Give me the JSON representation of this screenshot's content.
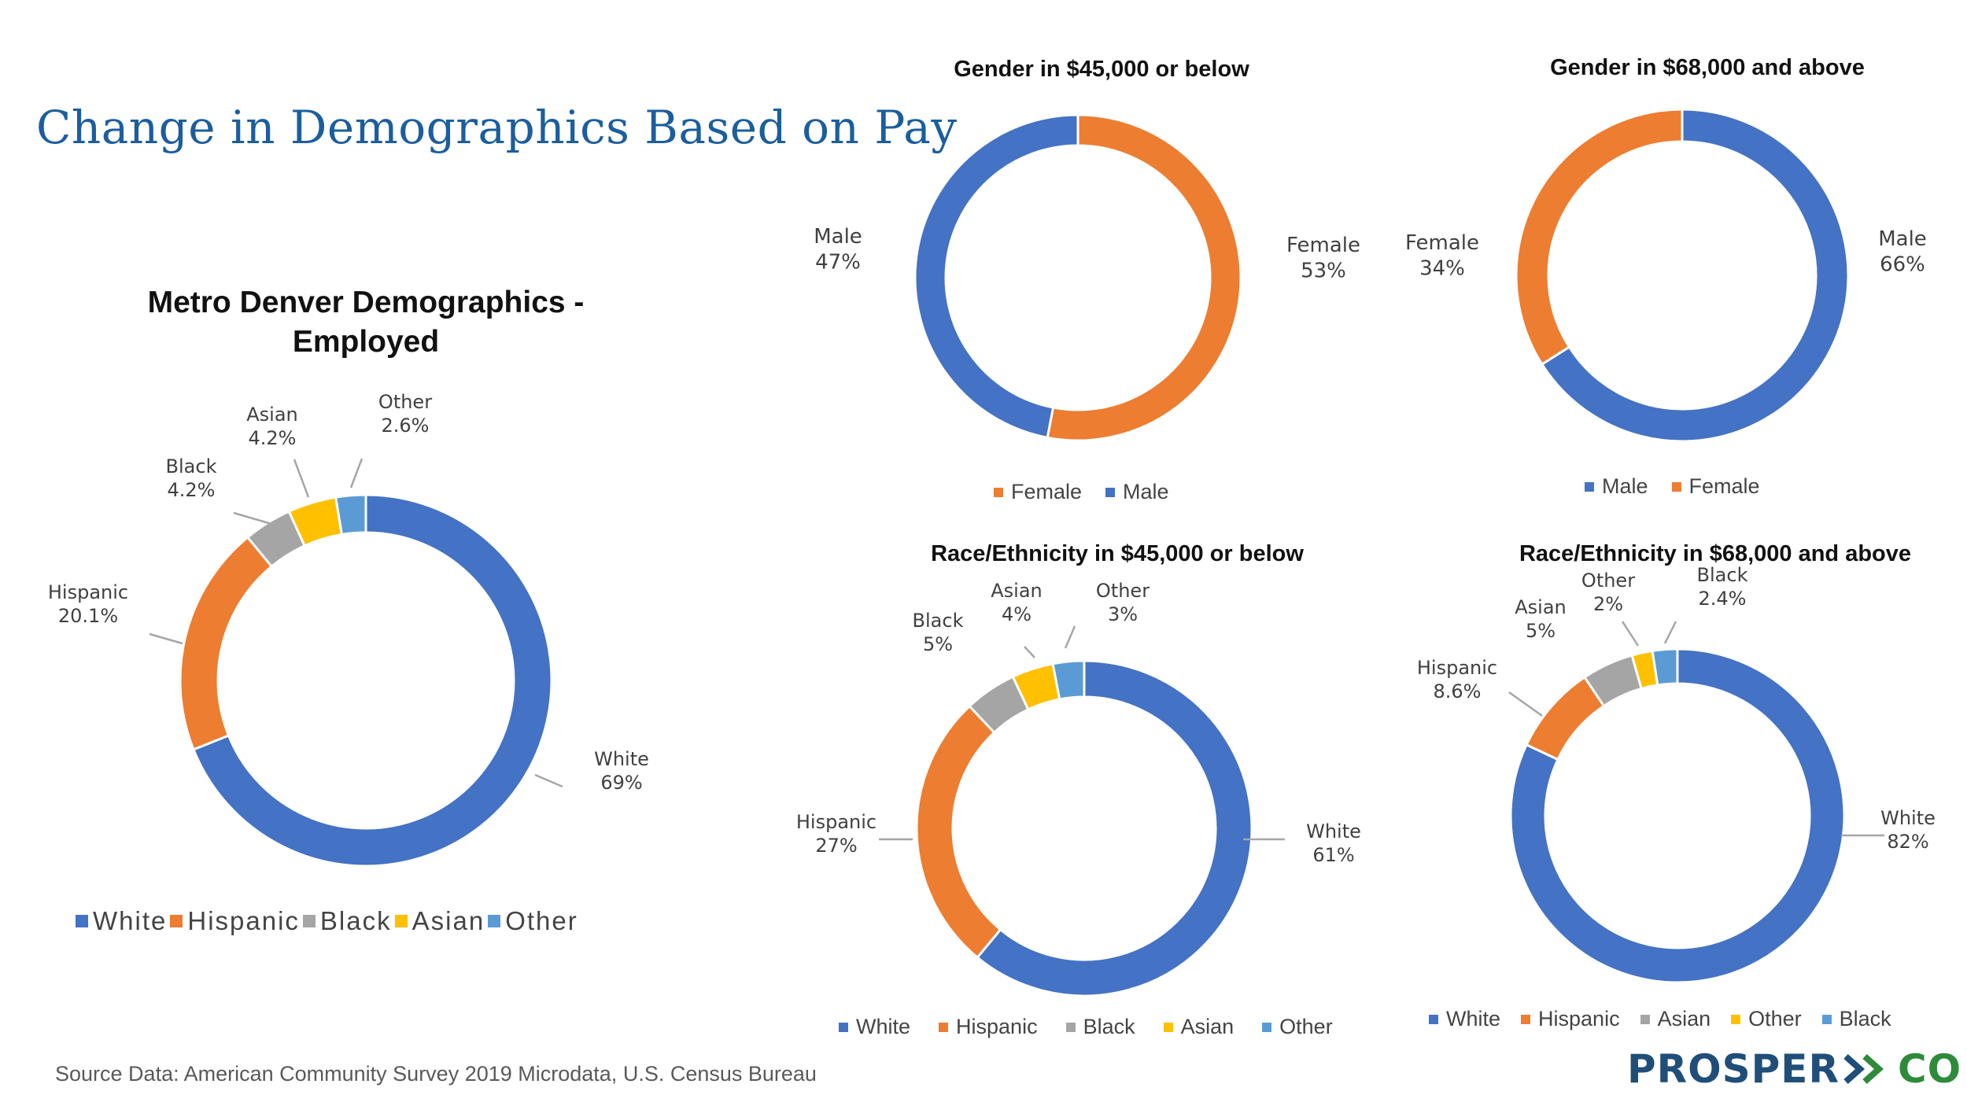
{
  "slide_title": "Change in Demographics Based on Pay",
  "source": "Source Data: American Community Survey 2019 Microdata, U.S. Census Bureau",
  "logo": {
    "part1": "PROSPER",
    "part2": "CO",
    "mark": "double-chevron-icon"
  },
  "colors": {
    "blue": "#4472C4",
    "orange": "#ED7D31",
    "gray": "#A5A5A5",
    "yellow": "#FFC000",
    "lightblue": "#5B9BD5"
  },
  "chart_data": [
    {
      "type": "pie",
      "title": "Metro Denver Demographics - Employed",
      "title_lines": [
        "Metro Denver Demographics -",
        "Employed"
      ],
      "categories": [
        "White",
        "Hispanic",
        "Black",
        "Asian",
        "Other"
      ],
      "values": [
        69,
        20.1,
        4.2,
        4.2,
        2.6
      ],
      "value_labels": [
        "69%",
        "20.1%",
        "4.2%",
        "4.2%",
        "2.6%"
      ],
      "legend": [
        "White",
        "Hispanic",
        "Black",
        "Asian",
        "Other"
      ],
      "legend_position": "bottom"
    },
    {
      "type": "pie",
      "title": "Gender in $45,000 or below",
      "categories": [
        "Female",
        "Male"
      ],
      "values": [
        53,
        47
      ],
      "value_labels": [
        "53%",
        "47%"
      ],
      "legend": [
        "Female",
        "Male"
      ],
      "legend_position": "bottom"
    },
    {
      "type": "pie",
      "title": "Gender in $68,000 and above",
      "categories": [
        "Male",
        "Female"
      ],
      "values": [
        66,
        34
      ],
      "value_labels": [
        "66%",
        "34%"
      ],
      "legend": [
        "Male",
        "Female"
      ],
      "legend_position": "bottom"
    },
    {
      "type": "pie",
      "title": "Race/Ethnicity in $45,000 or below",
      "categories": [
        "White",
        "Hispanic",
        "Black",
        "Asian",
        "Other"
      ],
      "values": [
        61,
        27,
        5,
        4,
        3
      ],
      "value_labels": [
        "61%",
        "27%",
        "5%",
        "4%",
        "3%"
      ],
      "legend": [
        "White",
        "Hispanic",
        "Black",
        "Asian",
        "Other"
      ],
      "legend_position": "bottom"
    },
    {
      "type": "pie",
      "title": "Race/Ethnicity in $68,000 and above",
      "categories": [
        "White",
        "Hispanic",
        "Asian",
        "Other",
        "Black"
      ],
      "values": [
        82,
        8.6,
        5,
        2,
        2.4
      ],
      "value_labels": [
        "82%",
        "8.6%",
        "5%",
        "2%",
        "2.4%"
      ],
      "legend": [
        "White",
        "Hispanic",
        "Asian",
        "Other",
        "Black"
      ],
      "legend_position": "bottom"
    }
  ]
}
